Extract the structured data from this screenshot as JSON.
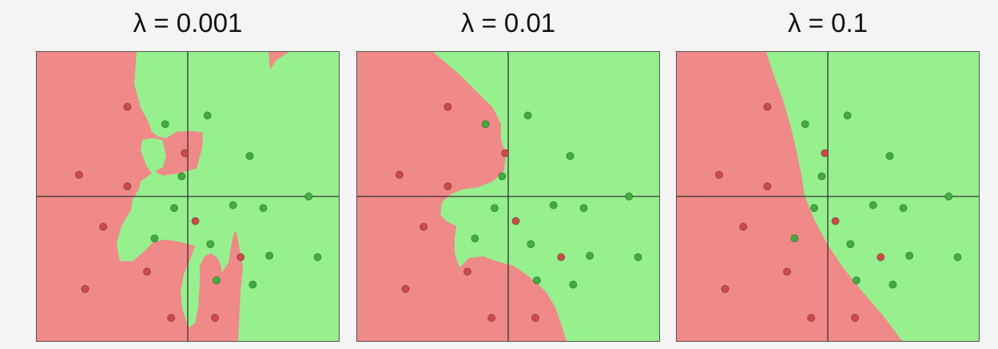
{
  "colors": {
    "class_red_region": "#f08a88",
    "class_green_region": "#96f08e",
    "red_point": "#cc4a4a",
    "green_point": "#3fae3f",
    "axis_line": "#333333"
  },
  "chart_data": [
    {
      "type": "scatter",
      "title": "λ = 0.001",
      "xlim": [
        -1,
        1
      ],
      "ylim": [
        -1,
        1
      ],
      "grid": false,
      "axes_through_origin": true,
      "regions": [
        "red",
        "green"
      ],
      "red_points": [
        [
          -0.4,
          0.62
        ],
        [
          -0.72,
          0.15
        ],
        [
          -0.4,
          0.07
        ],
        [
          -0.02,
          0.3
        ],
        [
          -0.56,
          -0.21
        ],
        [
          0.05,
          -0.17
        ],
        [
          -0.27,
          -0.52
        ],
        [
          -0.68,
          -0.64
        ],
        [
          -0.11,
          -0.84
        ],
        [
          0.35,
          -0.42
        ],
        [
          0.18,
          -0.84
        ]
      ],
      "green_points": [
        [
          -0.15,
          0.5
        ],
        [
          0.13,
          0.56
        ],
        [
          -0.04,
          0.14
        ],
        [
          0.41,
          0.28
        ],
        [
          -0.09,
          -0.08
        ],
        [
          0.3,
          -0.06
        ],
        [
          0.5,
          -0.08
        ],
        [
          0.8,
          0
        ],
        [
          -0.22,
          -0.29
        ],
        [
          0.15,
          -0.33
        ],
        [
          0.54,
          -0.41
        ],
        [
          0.86,
          -0.42
        ],
        [
          0.19,
          -0.58
        ],
        [
          0.43,
          -0.61
        ]
      ]
    },
    {
      "type": "scatter",
      "title": "λ = 0.01",
      "xlim": [
        -1,
        1
      ],
      "ylim": [
        -1,
        1
      ],
      "grid": false,
      "axes_through_origin": true,
      "regions": [
        "red",
        "green"
      ],
      "red_points": [
        [
          -0.4,
          0.62
        ],
        [
          -0.72,
          0.15
        ],
        [
          -0.4,
          0.07
        ],
        [
          -0.02,
          0.3
        ],
        [
          -0.56,
          -0.21
        ],
        [
          0.05,
          -0.17
        ],
        [
          -0.27,
          -0.52
        ],
        [
          -0.68,
          -0.64
        ],
        [
          -0.11,
          -0.84
        ],
        [
          0.35,
          -0.42
        ],
        [
          0.18,
          -0.84
        ]
      ],
      "green_points": [
        [
          -0.15,
          0.5
        ],
        [
          0.13,
          0.56
        ],
        [
          -0.04,
          0.14
        ],
        [
          0.41,
          0.28
        ],
        [
          -0.09,
          -0.08
        ],
        [
          0.3,
          -0.06
        ],
        [
          0.5,
          -0.08
        ],
        [
          0.8,
          0
        ],
        [
          -0.22,
          -0.29
        ],
        [
          0.15,
          -0.33
        ],
        [
          0.54,
          -0.41
        ],
        [
          0.86,
          -0.42
        ],
        [
          0.19,
          -0.58
        ],
        [
          0.43,
          -0.61
        ]
      ]
    },
    {
      "type": "scatter",
      "title": "λ = 0.1",
      "xlim": [
        -1,
        1
      ],
      "ylim": [
        -1,
        1
      ],
      "grid": false,
      "axes_through_origin": true,
      "regions": [
        "red",
        "green"
      ],
      "red_points": [
        [
          -0.4,
          0.62
        ],
        [
          -0.72,
          0.15
        ],
        [
          -0.4,
          0.07
        ],
        [
          -0.02,
          0.3
        ],
        [
          -0.56,
          -0.21
        ],
        [
          0.05,
          -0.17
        ],
        [
          -0.27,
          -0.52
        ],
        [
          -0.68,
          -0.64
        ],
        [
          -0.11,
          -0.84
        ],
        [
          0.35,
          -0.42
        ],
        [
          0.18,
          -0.84
        ]
      ],
      "green_points": [
        [
          -0.15,
          0.5
        ],
        [
          0.13,
          0.56
        ],
        [
          -0.04,
          0.14
        ],
        [
          0.41,
          0.28
        ],
        [
          -0.09,
          -0.08
        ],
        [
          0.3,
          -0.06
        ],
        [
          0.5,
          -0.08
        ],
        [
          0.8,
          0
        ],
        [
          -0.22,
          -0.29
        ],
        [
          0.15,
          -0.33
        ],
        [
          0.54,
          -0.41
        ],
        [
          0.86,
          -0.42
        ],
        [
          0.19,
          -0.58
        ],
        [
          0.43,
          -0.61
        ]
      ]
    }
  ]
}
